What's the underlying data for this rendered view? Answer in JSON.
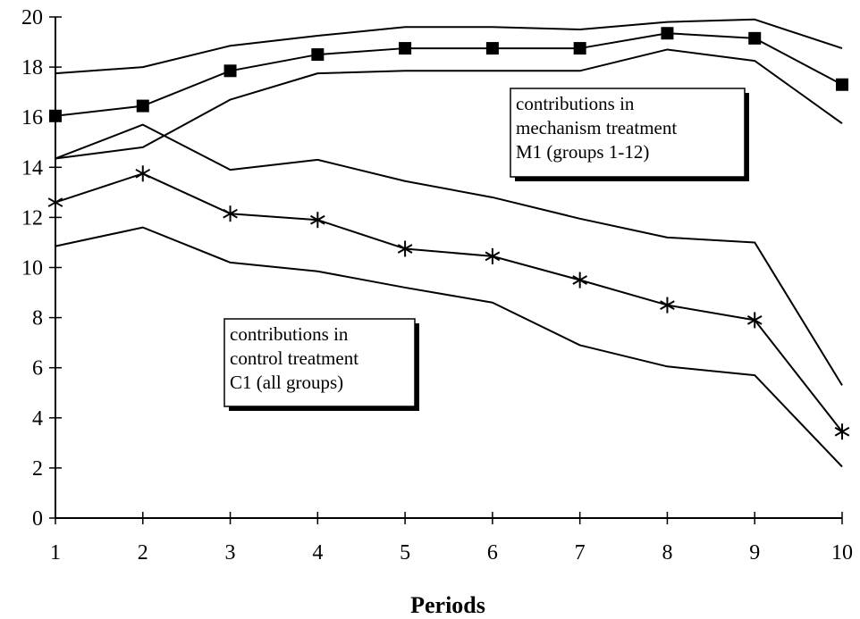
{
  "chart_data": {
    "type": "line",
    "xlabel": "Periods",
    "ylabel": "",
    "x": [
      1,
      2,
      3,
      4,
      5,
      6,
      7,
      8,
      9,
      10
    ],
    "xlim": [
      1,
      10
    ],
    "ylim": [
      0,
      20
    ],
    "yticks": [
      0,
      2,
      4,
      6,
      8,
      10,
      12,
      14,
      16,
      18,
      20
    ],
    "grid": false,
    "series": [
      {
        "group": "M1",
        "role": "upper",
        "marker": "none",
        "values": [
          17.75,
          18.0,
          18.85,
          19.25,
          19.6,
          19.6,
          19.5,
          19.8,
          19.9,
          18.75
        ]
      },
      {
        "group": "M1",
        "role": "mean",
        "marker": "square",
        "values": [
          16.05,
          16.45,
          17.85,
          18.5,
          18.75,
          18.75,
          18.75,
          19.35,
          19.15,
          17.3
        ]
      },
      {
        "group": "M1",
        "role": "lower",
        "marker": "none",
        "values": [
          14.35,
          14.8,
          16.7,
          17.75,
          17.85,
          17.85,
          17.85,
          18.7,
          18.25,
          15.75
        ]
      },
      {
        "group": "C1",
        "role": "upper",
        "marker": "none",
        "values": [
          14.35,
          15.7,
          13.9,
          14.3,
          13.45,
          12.8,
          11.95,
          11.2,
          11.0,
          5.3
        ]
      },
      {
        "group": "C1",
        "role": "mean",
        "marker": "asterisk",
        "values": [
          12.6,
          13.75,
          12.15,
          11.9,
          10.75,
          10.45,
          9.5,
          8.5,
          7.9,
          3.45
        ]
      },
      {
        "group": "C1",
        "role": "lower",
        "marker": "none",
        "values": [
          10.85,
          11.6,
          10.2,
          9.85,
          9.2,
          8.6,
          6.9,
          6.05,
          5.7,
          2.05
        ]
      }
    ],
    "annotations": [
      {
        "id": "m1",
        "anchor": "upper-right",
        "lines": [
          "contributions in",
          "mechanism treatment",
          "M1 (groups 1-12)"
        ]
      },
      {
        "id": "c1",
        "anchor": "lower-left",
        "lines": [
          "contributions in",
          "control treatment",
          "C1 (all groups)"
        ]
      }
    ]
  }
}
